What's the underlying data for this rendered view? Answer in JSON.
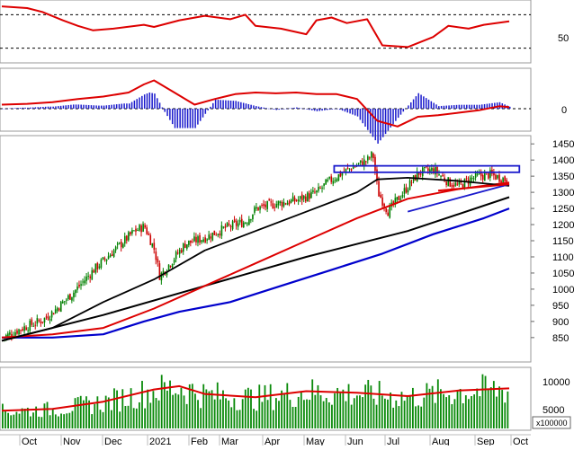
{
  "chart_data": {
    "type": "candlestick-multi-panel",
    "months": [
      "Oct",
      "Nov",
      "Dec",
      "2021",
      "Feb",
      "Mar",
      "Apr",
      "May",
      "Jun",
      "Jul",
      "Aug",
      "Sep",
      "Oct"
    ],
    "colors": {
      "up": "#008000",
      "down": "#cc0000",
      "ma_red": "#dd0000",
      "ma_black": "#000000",
      "ma_blue": "#0000cc",
      "macd_hist": "#1a1acc",
      "box": "#1a1acc",
      "volume": "#0a8a0a"
    },
    "panels": [
      {
        "id": "stochastic",
        "ylim": [
          0,
          100
        ],
        "ticks": [
          "50"
        ],
        "dashed_levels": [
          80,
          20
        ],
        "series": [
          {
            "role": "k",
            "x": [
              0,
              5,
              8,
              12,
              15,
              18,
              22,
              28,
              30,
              35,
              40,
              45,
              48,
              50,
              55,
              60,
              62,
              65,
              68,
              72,
              75,
              80,
              85,
              88,
              92,
              95,
              100
            ],
            "values": [
              95,
              92,
              85,
              70,
              60,
              52,
              55,
              62,
              58,
              70,
              78,
              72,
              80,
              60,
              55,
              45,
              70,
              75,
              65,
              72,
              25,
              22,
              40,
              60,
              55,
              62,
              68
            ]
          }
        ]
      },
      {
        "id": "macd",
        "ticks": [
          "0"
        ],
        "series": [
          {
            "role": "macd",
            "x": [
              0,
              5,
              10,
              15,
              20,
              25,
              28,
              30,
              34,
              38,
              42,
              46,
              50,
              54,
              58,
              62,
              66,
              70,
              74,
              78,
              82,
              86,
              90,
              94,
              98,
              100
            ],
            "values": [
              0.5,
              0.6,
              0.8,
              1.2,
              1.5,
              2.0,
              3.0,
              3.5,
              2.0,
              0.5,
              1.2,
              1.8,
              2.0,
              1.9,
              2.0,
              1.8,
              1.8,
              1.2,
              -1.5,
              -2.2,
              -1.0,
              -0.8,
              -0.5,
              -0.2,
              0.3,
              0.2
            ]
          }
        ]
      },
      {
        "id": "price",
        "ylim": [
          780,
          1470
        ],
        "ticks": [
          "1450",
          "1400",
          "1350",
          "1300",
          "1250",
          "1200",
          "1150",
          "1100",
          "1050",
          "1000",
          "950",
          "900",
          "850"
        ],
        "series": [
          {
            "role": "close",
            "x": [
              0,
              4,
              8,
              10,
              14,
              18,
              22,
              26,
              28,
              30,
              31,
              33,
              36,
              40,
              44,
              48,
              50,
              54,
              58,
              62,
              64,
              68,
              70,
              72,
              73,
              74,
              76,
              78,
              80,
              82,
              85,
              88,
              90,
              92,
              94,
              96,
              100
            ],
            "values": [
              850,
              880,
              905,
              930,
              990,
              1060,
              1120,
              1180,
              1195,
              1120,
              1040,
              1080,
              1140,
              1160,
              1190,
              1210,
              1250,
              1265,
              1275,
              1300,
              1330,
              1370,
              1385,
              1400,
              1420,
              1300,
              1240,
              1280,
              1320,
              1360,
              1370,
              1330,
              1320,
              1340,
              1350,
              1355,
              1335
            ]
          },
          {
            "role": "ma-black",
            "x": [
              0,
              10,
              20,
              30,
              40,
              50,
              60,
              70,
              74,
              80,
              90,
              100
            ],
            "values": [
              840,
              880,
              960,
              1030,
              1120,
              1180,
              1240,
              1300,
              1340,
              1345,
              1335,
              1320
            ]
          },
          {
            "role": "ma-red",
            "x": [
              0,
              10,
              20,
              30,
              40,
              50,
              60,
              70,
              80,
              90,
              100
            ],
            "values": [
              850,
              860,
              880,
              940,
              1010,
              1080,
              1150,
              1220,
              1280,
              1310,
              1330
            ]
          },
          {
            "role": "ma-black-long",
            "x": [
              0,
              20,
              40,
              60,
              80,
              100
            ],
            "values": [
              840,
              920,
              1010,
              1100,
              1180,
              1285
            ]
          },
          {
            "role": "ma-blue",
            "x": [
              0,
              10,
              20,
              28,
              35,
              45,
              55,
              65,
              75,
              85,
              95,
              100
            ],
            "values": [
              850,
              850,
              860,
              900,
              930,
              960,
              1010,
              1060,
              1110,
              1170,
              1220,
              1250
            ]
          }
        ]
      },
      {
        "id": "volume",
        "ticks": [
          "10000",
          "5000"
        ],
        "unit": "x100000",
        "series": [
          {
            "role": "volume-ma",
            "x": [
              0,
              10,
              20,
              30,
              35,
              40,
              50,
              60,
              70,
              80,
              90,
              100
            ],
            "values": [
              3200,
              3500,
              4800,
              7000,
              7600,
              6200,
              5600,
              6700,
              6400,
              5800,
              6800,
              7200
            ]
          }
        ]
      }
    ]
  }
}
